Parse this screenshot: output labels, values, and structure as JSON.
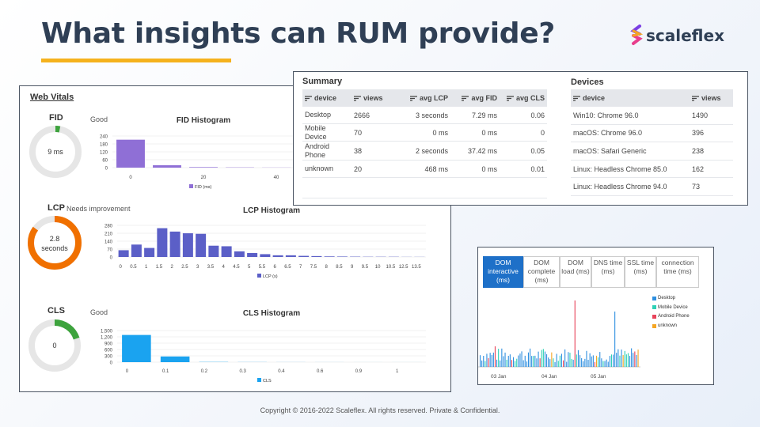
{
  "slide": {
    "title": "What insights can RUM provide?",
    "logo_text": "scaleflex",
    "footer": "Copyright © 2016-2022 Scaleflex. All rights reserved. Private & Confidential.",
    "accent_color": "#f5b21d",
    "title_color": "#2f3f55"
  },
  "web_vitals": {
    "heading": "Web Vitals",
    "fid": {
      "label": "FID",
      "status": "Good",
      "value": "9 ms",
      "gauge_color": "#3da33d",
      "gauge_fraction": 0.03
    },
    "lcp": {
      "label": "LCP",
      "status": "Needs improvement",
      "value_line1": "2.8",
      "value_line2": "seconds",
      "gauge_color": "#f07000",
      "gauge_fraction": 0.85
    },
    "cls": {
      "label": "CLS",
      "status": "Good",
      "value": "0",
      "gauge_color": "#3da33d",
      "gauge_fraction": 0.2
    }
  },
  "chart_data": [
    {
      "type": "bar",
      "title": "FID Histogram",
      "legend": "FID (ms)",
      "color": "#8f6fd6",
      "categories": [
        "0",
        "",
        "20",
        "",
        "40"
      ],
      "y_ticks": [
        "240",
        "180",
        "120",
        "60",
        "0"
      ],
      "ylim": [
        0,
        240
      ],
      "values": [
        212,
        18,
        4,
        2,
        1
      ]
    },
    {
      "type": "bar",
      "title": "LCP Histogram",
      "legend": "LCP (s)",
      "color": "#5b5fc7",
      "categories": [
        "0",
        "0.5",
        "1",
        "1.5",
        "2",
        "2.5",
        "3",
        "3.5",
        "4",
        "4.5",
        "5",
        "5.5",
        "6",
        "6.5",
        "7",
        "7.5",
        "8",
        "8.5",
        "9",
        "9.5",
        "10",
        "10.5",
        "12.5",
        "13.5"
      ],
      "y_ticks": [
        "280",
        "210",
        "140",
        "70",
        "0"
      ],
      "ylim": [
        0,
        280
      ],
      "values": [
        60,
        110,
        80,
        255,
        225,
        210,
        205,
        100,
        95,
        50,
        35,
        25,
        15,
        15,
        10,
        8,
        5,
        4,
        3,
        2,
        2,
        2,
        1,
        1
      ]
    },
    {
      "type": "bar",
      "title": "CLS Histogram",
      "legend": "CLS",
      "color": "#1aa3f0",
      "categories": [
        "0",
        "0.1",
        "0.2",
        "0.3",
        "0.4",
        "0.6",
        "0.9",
        "1"
      ],
      "y_ticks": [
        "1,500",
        "1,200",
        "900",
        "600",
        "300",
        "0"
      ],
      "ylim": [
        0,
        1500
      ],
      "values": [
        1290,
        270,
        10,
        5,
        3,
        2,
        1,
        1
      ]
    },
    {
      "type": "bar",
      "title": "",
      "x_ticks": [
        "03 Jan",
        "04 Jan",
        "05 Jan"
      ],
      "series": [
        {
          "name": "Desktop",
          "color": "#2e8fe0"
        },
        {
          "name": "Mobile Device",
          "color": "#2dd1b6"
        },
        {
          "name": "Android Phone",
          "color": "#e8435a"
        },
        {
          "name": "unknown",
          "color": "#f5a623"
        }
      ]
    }
  ],
  "summary": {
    "heading": "Summary",
    "columns": [
      "device",
      "views",
      "avg LCP",
      "avg FID",
      "avg CLS"
    ],
    "rows": [
      {
        "device": "Desktop",
        "views": "2666",
        "lcp": "3 seconds",
        "fid": "7.29 ms",
        "cls": "0.06"
      },
      {
        "device": "Mobile Device",
        "views": "70",
        "lcp": "0 ms",
        "fid": "0 ms",
        "cls": "0"
      },
      {
        "device": "Android Phone",
        "views": "38",
        "lcp": "2 seconds",
        "fid": "37.42 ms",
        "cls": "0.05"
      },
      {
        "device": "unknown",
        "views": "20",
        "lcp": "468 ms",
        "fid": "0 ms",
        "cls": "0.01"
      }
    ]
  },
  "devices": {
    "heading": "Devices",
    "columns": [
      "device",
      "views"
    ],
    "rows": [
      {
        "device": "Win10: Chrome 96.0",
        "views": "1490"
      },
      {
        "device": "macOS: Chrome 96.0",
        "views": "396"
      },
      {
        "device": "macOS: Safari Generic",
        "views": "238"
      },
      {
        "device": "Linux: Headless Chrome 85.0",
        "views": "162"
      },
      {
        "device": "Linux: Headless Chrome 94.0",
        "views": "73"
      }
    ]
  },
  "timing": {
    "tabs": [
      {
        "label": "DOM interactive (ms)",
        "active": true
      },
      {
        "label": "DOM complete (ms)",
        "active": false
      },
      {
        "label": "DOM load (ms)",
        "active": false
      },
      {
        "label": "DNS time (ms)",
        "active": false
      },
      {
        "label": "SSL time (ms)",
        "active": false
      },
      {
        "label": "connection time (ms)",
        "active": false
      }
    ]
  }
}
